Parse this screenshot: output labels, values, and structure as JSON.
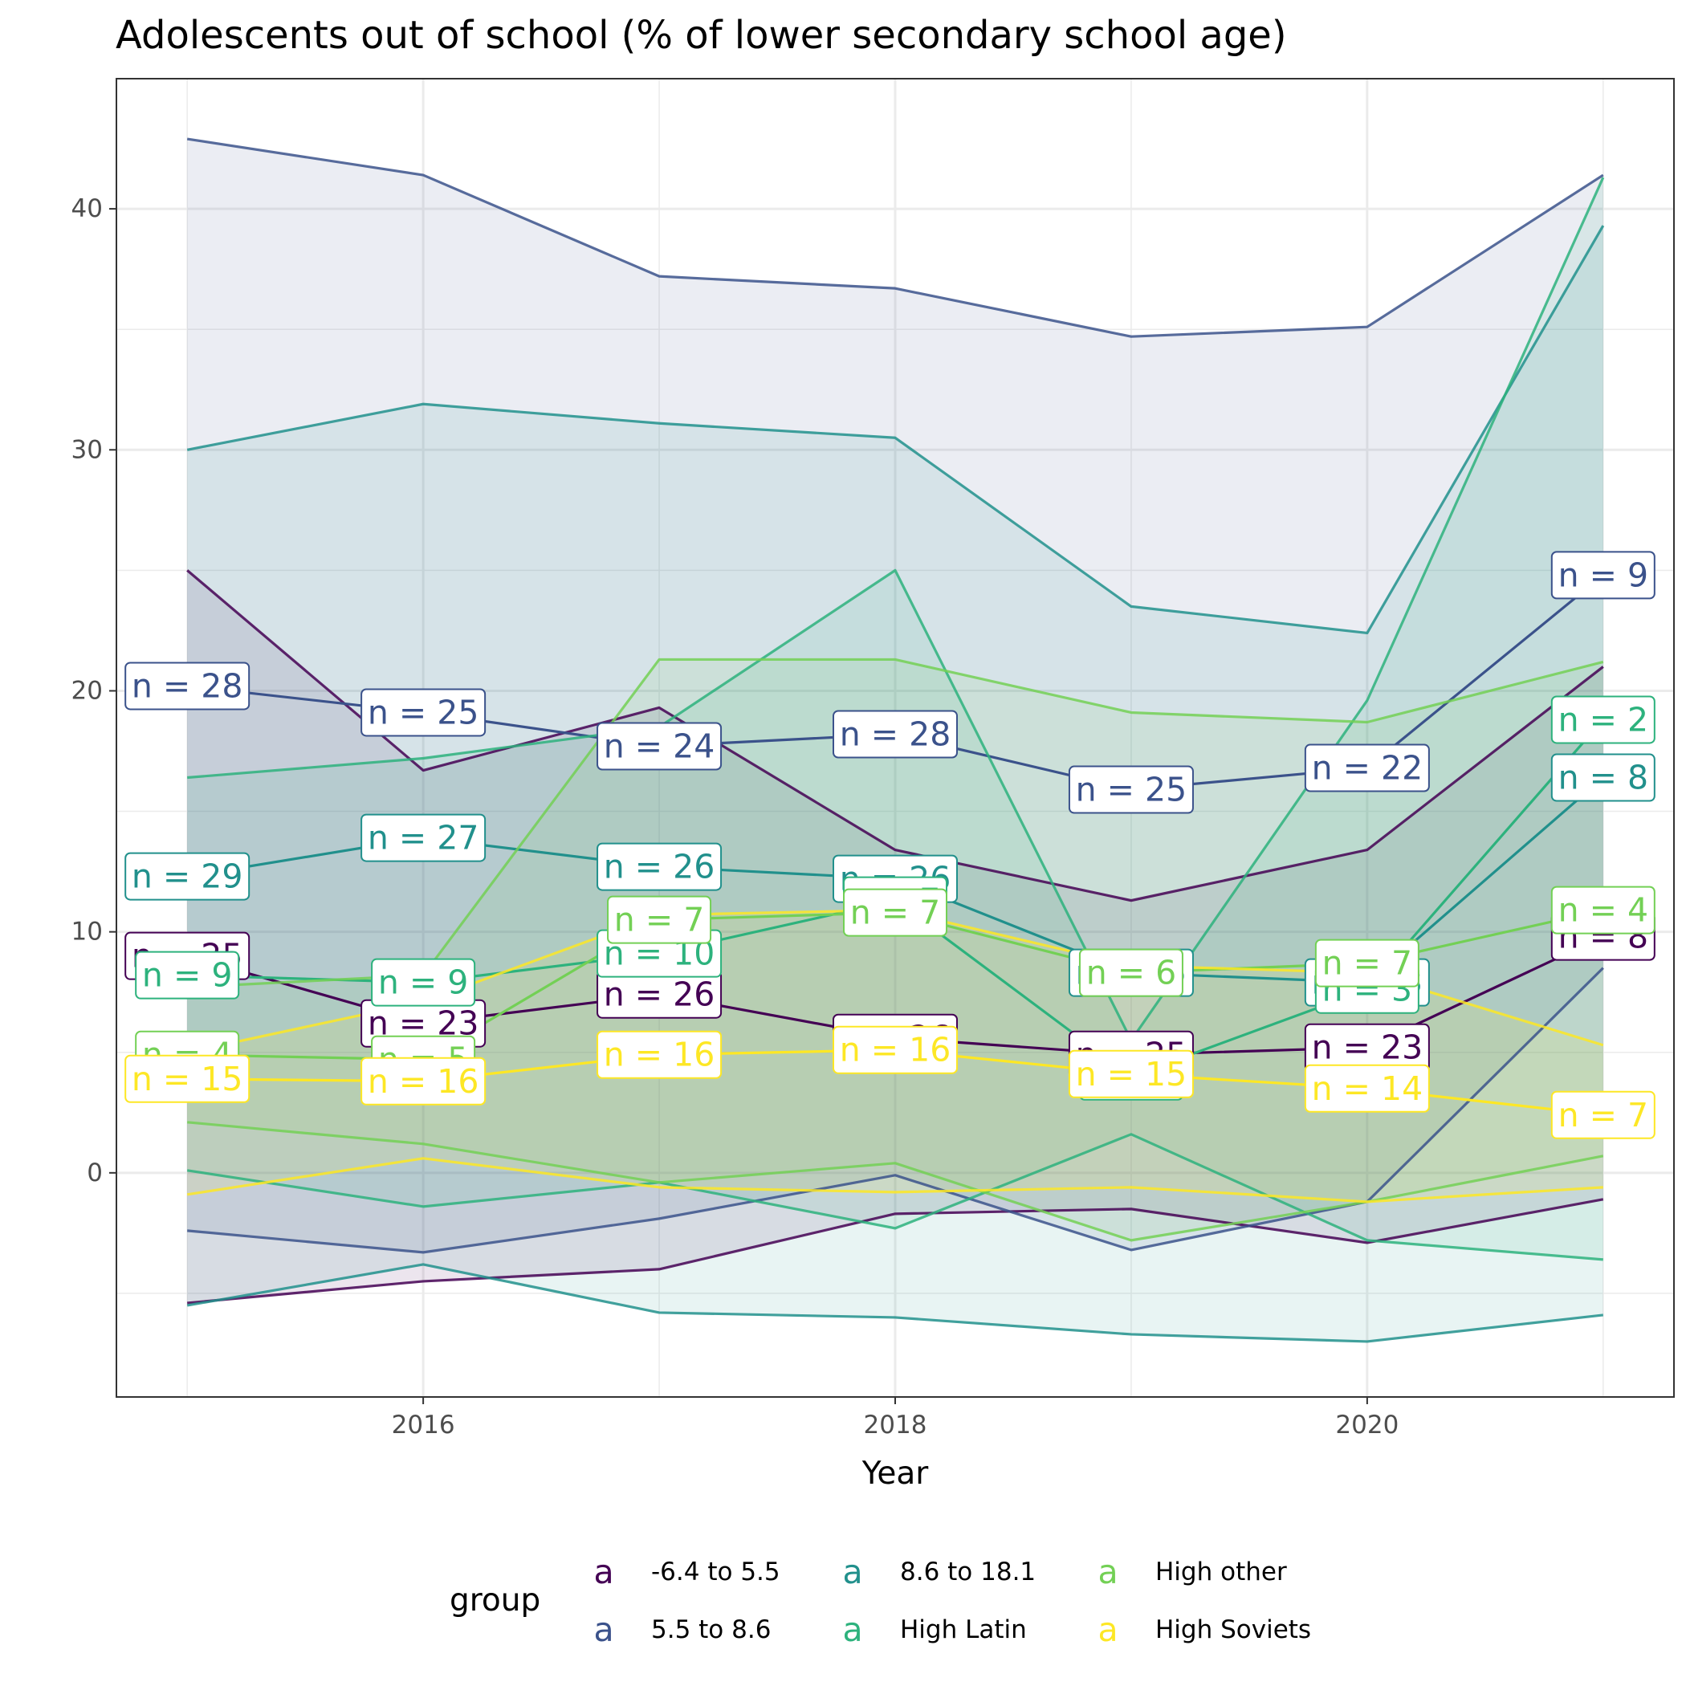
{
  "chart_data": {
    "type": "line",
    "title": "Adolescents out of school (% of lower secondary school age)",
    "xlabel": "Year",
    "ylabel": "",
    "xlim": [
      2014.7,
      2021.3
    ],
    "ylim": [
      -9.3,
      45.4
    ],
    "x_ticks": [
      2016,
      2018,
      2020
    ],
    "y_ticks": [
      0,
      10,
      20,
      30,
      40
    ],
    "grid": true,
    "legend": {
      "title": "group",
      "position": "bottom",
      "key_glyph": "a"
    },
    "series": [
      {
        "name": "-6.4 to 5.5",
        "color": "#440154",
        "x": [
          2015,
          2016,
          2017,
          2018,
          2019,
          2020,
          2021
        ],
        "mean": [
          9.0,
          6.2,
          7.4,
          5.6,
          4.9,
          5.2,
          9.8
        ],
        "upper": [
          25.0,
          16.7,
          19.3,
          13.4,
          11.3,
          13.4,
          21.0
        ],
        "lower": [
          -5.4,
          -4.5,
          -4.0,
          -1.7,
          -1.5,
          -2.9,
          -1.1
        ],
        "n": [
          25,
          23,
          26,
          26,
          25,
          23,
          8
        ]
      },
      {
        "name": "5.5 to 8.6",
        "color": "#3b528b",
        "x": [
          2015,
          2016,
          2017,
          2018,
          2019,
          2020,
          2021
        ],
        "mean": [
          20.2,
          19.1,
          17.7,
          18.2,
          15.9,
          16.8,
          24.8
        ],
        "upper": [
          42.9,
          41.4,
          37.2,
          36.7,
          34.7,
          35.1,
          41.4
        ],
        "lower": [
          -2.4,
          -3.3,
          -1.9,
          -0.1,
          -3.2,
          -1.2,
          8.5
        ],
        "n": [
          28,
          25,
          24,
          28,
          25,
          22,
          9
        ]
      },
      {
        "name": "8.6 to 18.1",
        "color": "#21908c",
        "x": [
          2015,
          2016,
          2017,
          2018,
          2019,
          2020,
          2021
        ],
        "mean": [
          12.3,
          13.9,
          12.7,
          12.2,
          8.3,
          7.9,
          16.4
        ],
        "upper": [
          30.0,
          31.9,
          31.1,
          30.5,
          23.5,
          22.4,
          39.3
        ],
        "lower": [
          -5.5,
          -3.8,
          -5.8,
          -6.0,
          -6.7,
          -7.0,
          -5.9
        ],
        "n": [
          29,
          27,
          26,
          26,
          25,
          23,
          8
        ]
      },
      {
        "name": "High Latin",
        "color": "#2db27d",
        "x": [
          2015,
          2016,
          2017,
          2018,
          2019,
          2020,
          2021
        ],
        "mean": [
          8.2,
          7.9,
          9.1,
          11.3,
          4.0,
          7.6,
          18.8
        ],
        "upper": [
          16.4,
          17.2,
          18.5,
          25.0,
          5.5,
          19.6,
          41.3
        ],
        "lower": [
          0.1,
          -1.4,
          -0.4,
          -2.3,
          1.6,
          -2.8,
          -3.6
        ],
        "n": [
          9,
          9,
          10,
          7,
          3,
          3,
          2
        ]
      },
      {
        "name": "High other",
        "color": "#73d055",
        "x": [
          2015,
          2016,
          2017,
          2018,
          2019,
          2020,
          2021
        ],
        "mean": [
          4.9,
          4.7,
          10.5,
          10.8,
          8.3,
          8.7,
          10.9
        ],
        "upper": [
          7.7,
          8.2,
          21.3,
          21.3,
          19.1,
          18.7,
          21.2
        ],
        "lower": [
          2.1,
          1.2,
          -0.4,
          0.4,
          -2.8,
          -1.2,
          0.7
        ],
        "n": [
          4,
          5,
          7,
          7,
          6,
          7,
          4
        ]
      },
      {
        "name": "High Soviets",
        "color": "#fde725",
        "x": [
          2015,
          2016,
          2017,
          2018,
          2019,
          2020,
          2021
        ],
        "mean": [
          3.9,
          3.8,
          4.9,
          5.1,
          4.1,
          3.5,
          2.4
        ],
        "upper": [
          5.0,
          7.1,
          10.7,
          10.9,
          8.6,
          8.3,
          5.3
        ],
        "lower": [
          -0.9,
          0.6,
          -0.6,
          -0.8,
          -0.6,
          -1.2,
          -0.6
        ],
        "n": [
          15,
          16,
          16,
          16,
          15,
          14,
          7
        ]
      }
    ]
  }
}
